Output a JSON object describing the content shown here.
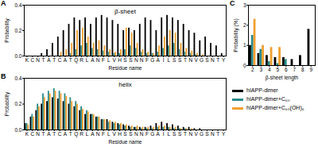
{
  "chart_data": [
    {
      "type": "bar",
      "panel": "A",
      "title": "β-sheet",
      "x_label": "Residue name",
      "y_label": "Probability",
      "categories": [
        "K",
        "C",
        "N",
        "T",
        "A",
        "T",
        "C",
        "A",
        "T",
        "Q",
        "R",
        "L",
        "A",
        "N",
        "F",
        "L",
        "V",
        "H",
        "S",
        "S",
        "N",
        "N",
        "F",
        "G",
        "A",
        "I",
        "L",
        "S",
        "S",
        "T",
        "N",
        "V",
        "G",
        "S",
        "N",
        "T",
        "Y"
      ],
      "ylim": [
        0,
        0.4
      ],
      "yticks": [
        {
          "value": 0,
          "label": "0.0"
        },
        {
          "value": 0.2,
          "label": "0.2"
        },
        {
          "value": 0.4,
          "label": "0.4"
        }
      ],
      "series": [
        {
          "name": "hIAPP-dimer",
          "color": "#000000",
          "values": [
            0,
            0,
            0,
            0.02,
            0.05,
            0.1,
            0.15,
            0.2,
            0.25,
            0.3,
            0.28,
            0.3,
            0.25,
            0.3,
            0.32,
            0.3,
            0.28,
            0.25,
            0.2,
            0.22,
            0.2,
            0.25,
            0.3,
            0.28,
            0.2,
            0.3,
            0.32,
            0.3,
            0.28,
            0.25,
            0.2,
            0.18,
            0.12,
            0.15,
            0.1,
            0.08,
            0.02
          ]
        },
        {
          "name": "hIAPP-dimer+C₆₀",
          "color": "#2a8a8a",
          "values": [
            0,
            0,
            0,
            0,
            0,
            0,
            0,
            0,
            0.02,
            0.05,
            0.08,
            0.1,
            0.06,
            0.05,
            0.04,
            0.03,
            0.02,
            0.02,
            0.05,
            0.08,
            0.06,
            0.03,
            0.02,
            0.02,
            0.03,
            0.06,
            0.08,
            0.1,
            0.05,
            0.03,
            0.02,
            0.01,
            0,
            0,
            0,
            0,
            0
          ]
        },
        {
          "name": "hIAPP-dimer+C₆₀(OH)₆",
          "color": "#f0a030",
          "values": [
            0,
            0,
            0,
            0,
            0,
            0,
            0.03,
            0.05,
            0.1,
            0.2,
            0.22,
            0.15,
            0.1,
            0.12,
            0.08,
            0.05,
            0.03,
            0.05,
            0.22,
            0.18,
            0.1,
            0.05,
            0.03,
            0.02,
            0.08,
            0.15,
            0.2,
            0.18,
            0.1,
            0.06,
            0.04,
            0.02,
            0.01,
            0,
            0,
            0,
            0
          ]
        }
      ]
    },
    {
      "type": "bar",
      "panel": "B",
      "title": "helix",
      "x_label": "Residue name",
      "y_label": "Probability",
      "categories": [
        "K",
        "C",
        "N",
        "T",
        "A",
        "T",
        "C",
        "A",
        "T",
        "Q",
        "R",
        "L",
        "A",
        "N",
        "F",
        "L",
        "V",
        "H",
        "S",
        "S",
        "N",
        "N",
        "F",
        "G",
        "A",
        "I",
        "L",
        "S",
        "S",
        "T",
        "N",
        "V",
        "G",
        "S",
        "N",
        "T",
        "Y"
      ],
      "ylim": [
        0,
        0.4
      ],
      "yticks": [
        {
          "value": 0,
          "label": "0.0"
        },
        {
          "value": 0.2,
          "label": "0.2"
        },
        {
          "value": 0.4,
          "label": "0.4"
        }
      ],
      "series": [
        {
          "name": "hIAPP-dimer",
          "color": "#000000",
          "values": [
            0.05,
            0.1,
            0.15,
            0.2,
            0.22,
            0.25,
            0.24,
            0.22,
            0.2,
            0.18,
            0.15,
            0.12,
            0.12,
            0.1,
            0.08,
            0.08,
            0.06,
            0.05,
            0.04,
            0.03,
            0.02,
            0.02,
            0.02,
            0.03,
            0.05,
            0.06,
            0.05,
            0.04,
            0.03,
            0.02,
            0.02,
            0.01,
            0.01,
            0,
            0,
            0,
            0
          ]
        },
        {
          "name": "hIAPP-dimer+C₆₀",
          "color": "#2a8a8a",
          "values": [
            0.05,
            0.12,
            0.2,
            0.28,
            0.3,
            0.32,
            0.3,
            0.28,
            0.25,
            0.22,
            0.18,
            0.15,
            0.12,
            0.1,
            0.08,
            0.06,
            0.05,
            0.04,
            0.03,
            0.02,
            0.02,
            0.01,
            0.01,
            0.01,
            0.02,
            0.02,
            0.02,
            0.01,
            0.01,
            0.01,
            0,
            0,
            0,
            0,
            0,
            0,
            0
          ]
        },
        {
          "name": "hIAPP-dimer+C₆₀(OH)₆",
          "color": "#f0a030",
          "values": [
            0.04,
            0.1,
            0.18,
            0.25,
            0.28,
            0.3,
            0.28,
            0.26,
            0.22,
            0.2,
            0.16,
            0.14,
            0.12,
            0.1,
            0.08,
            0.07,
            0.06,
            0.05,
            0.04,
            0.03,
            0.03,
            0.02,
            0.02,
            0.02,
            0.03,
            0.03,
            0.02,
            0.02,
            0.01,
            0.01,
            0.01,
            0,
            0,
            0,
            0,
            0,
            0
          ]
        }
      ]
    },
    {
      "type": "bar",
      "panel": "C",
      "x_label": "β-sheet length",
      "y_label": "Probability (%)",
      "legend": "bottom",
      "x": [
        2,
        3,
        4,
        5,
        6,
        7,
        8,
        9
      ],
      "xlim": [
        1.5,
        9.5
      ],
      "xticks": [
        2,
        3,
        4,
        5,
        6,
        7,
        8,
        9
      ],
      "ylim": [
        0,
        3
      ],
      "yticks": [
        0,
        1,
        2,
        3
      ],
      "series": [
        {
          "name": "hIAPP-dimer",
          "color": "#000000",
          "values": [
            1.0,
            0.6,
            0.5,
            0.4,
            0.4,
            0.3,
            0.5,
            1.8
          ]
        },
        {
          "name": "hIAPP-dimer+C₆₀",
          "color": "#2a8a8a",
          "values": [
            1.5,
            0.8,
            0.2,
            0.1,
            0.3,
            0,
            0,
            0
          ]
        },
        {
          "name": "hIAPP-dimer+C₆₀(OH)₆",
          "color": "#f0a030",
          "values": [
            2.3,
            1.0,
            0.9,
            0.9,
            0,
            0,
            0,
            0
          ]
        }
      ]
    }
  ]
}
